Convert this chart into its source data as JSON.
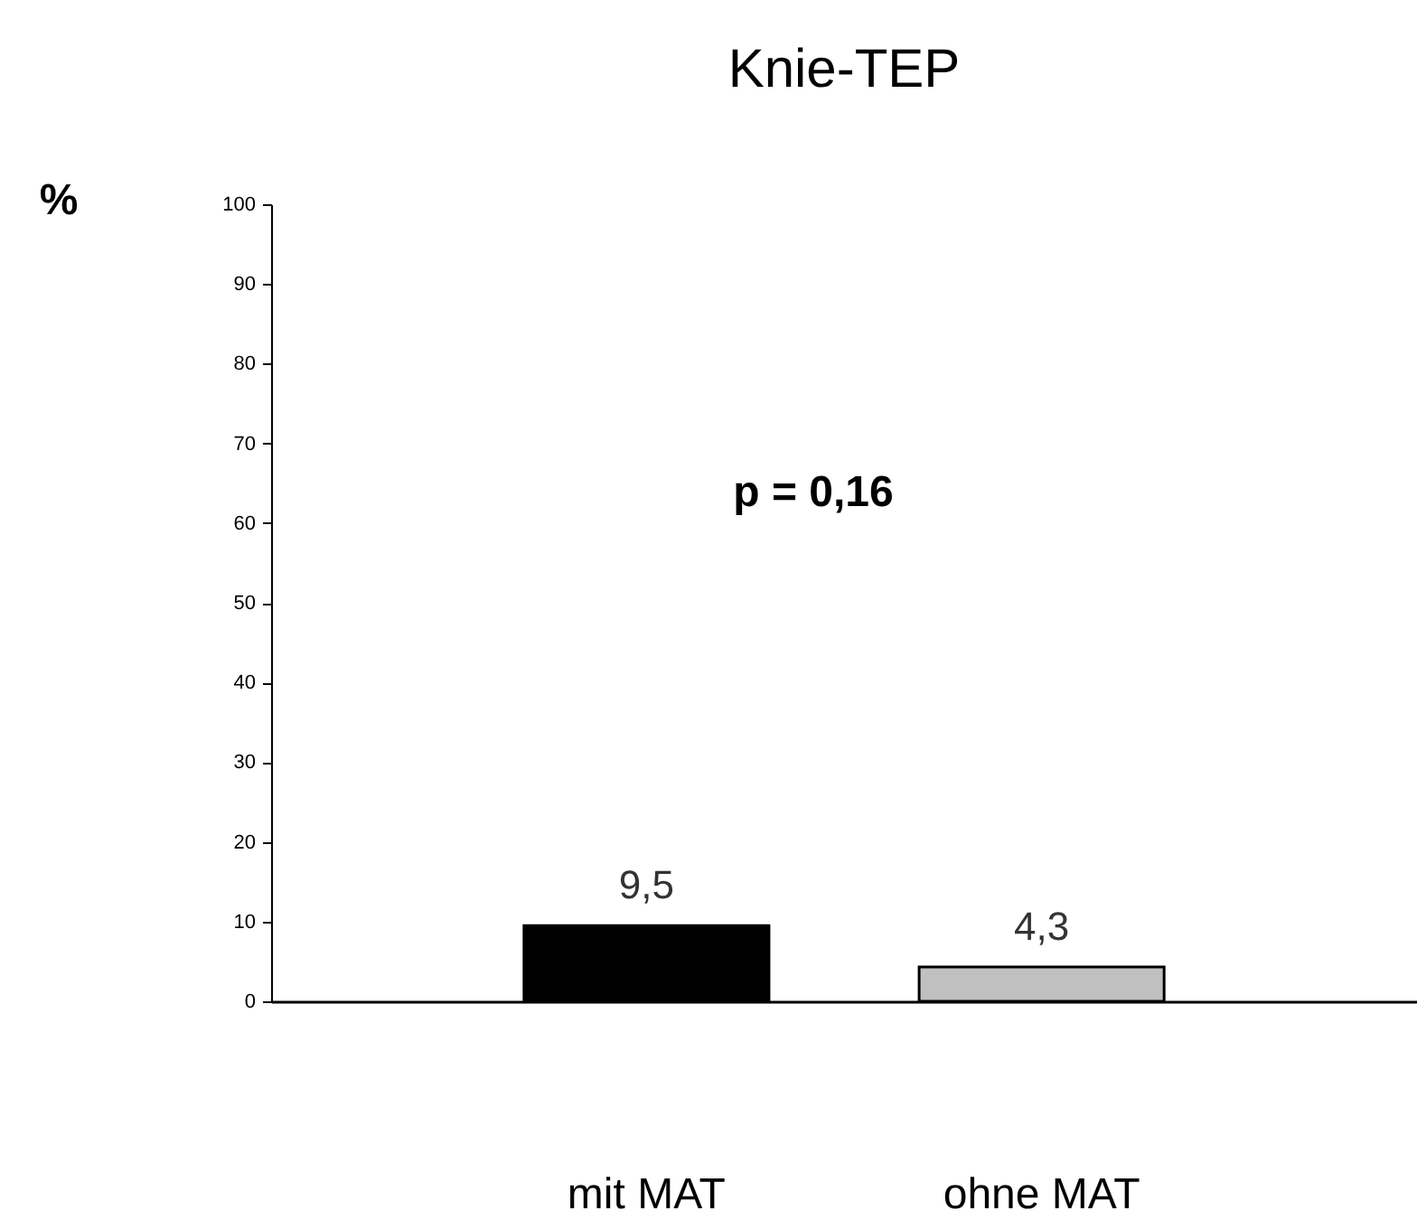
{
  "chart_data": {
    "type": "bar",
    "title": "Knie-TEP",
    "ylabel": "%",
    "categories": [
      "mit MAT",
      "ohne MAT"
    ],
    "values": [
      9.5,
      4.3
    ],
    "colors": [
      "#000000",
      "#c0c0c0"
    ],
    "value_labels": [
      "9,5",
      "4,3"
    ],
    "annotations": [
      "p = 0,16"
    ],
    "ylim": [
      0,
      100
    ],
    "yticks": [
      0,
      10,
      20,
      30,
      40,
      50,
      60,
      70,
      80,
      90,
      100
    ]
  }
}
